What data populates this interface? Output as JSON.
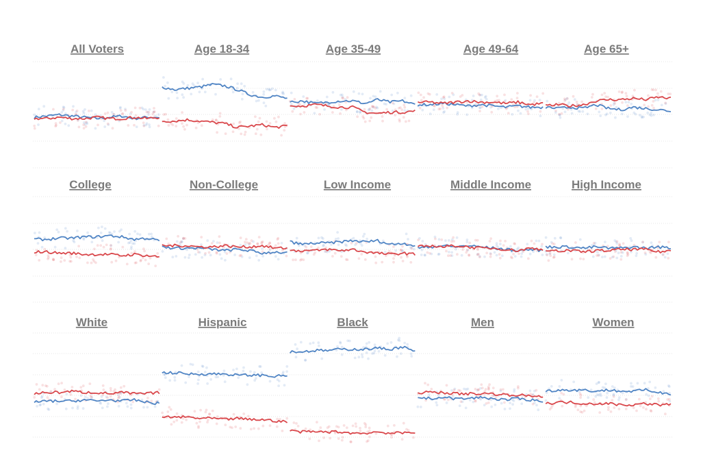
{
  "colors": {
    "dem": "#4f84c4",
    "rep": "#d9464a",
    "title": "#7b7b7b",
    "grid": "#e4e4e4"
  },
  "chart_data": {
    "type": "line",
    "description_units": "share of vote, points above/below parity",
    "ylim": [
      -40,
      40
    ],
    "panels": [
      {
        "title": "All Voters",
        "dem": [
          -2,
          -1,
          0,
          -1,
          -2,
          -3,
          -2,
          -1,
          -3,
          -2,
          -2
        ],
        "rep": [
          -3,
          -3,
          -2,
          -3,
          -3,
          -2,
          -3,
          -3,
          -2,
          -3,
          -2
        ]
      },
      {
        "title": "Age 18-34",
        "dem": [
          22,
          20,
          21,
          22,
          24,
          23,
          20,
          16,
          14,
          15,
          13
        ],
        "rep": [
          -5,
          -5,
          -4,
          -5,
          -6,
          -7,
          -10,
          -9,
          -8,
          -10,
          -9
        ]
      },
      {
        "title": "Age 35-49",
        "dem": [
          10,
          11,
          9,
          10,
          11,
          11,
          9,
          12,
          10,
          11,
          8
        ],
        "rep": [
          7,
          7,
          8,
          7,
          6,
          6,
          2,
          1,
          2,
          2,
          3
        ]
      },
      {
        "title": "Age 49-64",
        "dem": [
          8,
          8,
          9,
          8,
          7,
          8,
          7,
          6,
          7,
          6,
          6
        ],
        "rep": [
          10,
          10,
          9,
          10,
          11,
          10,
          10,
          9,
          10,
          8,
          9
        ]
      },
      {
        "title": "Age 65+",
        "dem": [
          6,
          5,
          6,
          5,
          8,
          5,
          4,
          6,
          5,
          4,
          3
        ],
        "rep": [
          7,
          8,
          7,
          8,
          11,
          12,
          12,
          13,
          12,
          14,
          13
        ]
      },
      {
        "title": "College",
        "dem": [
          8,
          8,
          9,
          9,
          10,
          10,
          11,
          10,
          8,
          9,
          7
        ],
        "rep": [
          -2,
          -2,
          -3,
          -3,
          -4,
          -4,
          -4,
          -5,
          -4,
          -5,
          -6
        ]
      },
      {
        "title": "Non-College",
        "dem": [
          2,
          1,
          1,
          1,
          0,
          -1,
          0,
          -1,
          -3,
          -2,
          -3
        ],
        "rep": [
          3,
          3,
          3,
          2,
          2,
          3,
          2,
          2,
          3,
          1,
          1
        ]
      },
      {
        "title": "Low Income",
        "dem": [
          6,
          4,
          5,
          5,
          6,
          7,
          6,
          7,
          4,
          5,
          3
        ],
        "rep": [
          -1,
          -1,
          -1,
          0,
          -1,
          0,
          -2,
          -3,
          -4,
          -3,
          -4
        ]
      },
      {
        "title": "Middle Income",
        "dem": [
          1,
          2,
          3,
          2,
          3,
          2,
          1,
          0,
          -1,
          0,
          -1
        ],
        "rep": [
          2,
          3,
          2,
          3,
          2,
          1,
          1,
          0,
          -1,
          1,
          0
        ]
      },
      {
        "title": "High Income",
        "dem": [
          2,
          2,
          2,
          1,
          2,
          1,
          1,
          2,
          1,
          2,
          1
        ],
        "rep": [
          -2,
          -1,
          -1,
          -2,
          -1,
          -1,
          0,
          0,
          0,
          -2,
          -1
        ]
      },
      {
        "title": "White",
        "dem": [
          -14,
          -13,
          -13,
          -13,
          -12,
          -13,
          -12,
          -13,
          -12,
          -14,
          -15
        ],
        "rep": [
          -7,
          -6,
          -6,
          -5,
          -6,
          -6,
          -7,
          -6,
          -7,
          -7,
          -6
        ]
      },
      {
        "title": "Hispanic",
        "dem": [
          10,
          10,
          9,
          9,
          9,
          9,
          8,
          8,
          8,
          7,
          8
        ],
        "rep": [
          -26,
          -26,
          -26,
          -27,
          -27,
          -28,
          -27,
          -28,
          -28,
          -29,
          -30
        ]
      },
      {
        "title": "Black",
        "dem": [
          27,
          27,
          28,
          28,
          29,
          29,
          29,
          30,
          29,
          31,
          27
        ],
        "rep": [
          -37,
          -38,
          -38,
          -38,
          -38,
          -39,
          -39,
          -38,
          -39,
          -39,
          -38
        ]
      },
      {
        "title": "Men",
        "dem": [
          -10,
          -11,
          -10,
          -11,
          -11,
          -10,
          -11,
          -12,
          -11,
          -12,
          -13
        ],
        "rep": [
          -6,
          -6,
          -6,
          -7,
          -7,
          -7,
          -7,
          -8,
          -8,
          -9,
          -9
        ]
      },
      {
        "title": "Women",
        "dem": [
          -5,
          -4,
          -4,
          -4,
          -5,
          -4,
          -5,
          -5,
          -4,
          -6,
          -7
        ],
        "rep": [
          -15,
          -14,
          -14,
          -15,
          -15,
          -15,
          -16,
          -16,
          -15,
          -16,
          -16
        ]
      }
    ]
  }
}
